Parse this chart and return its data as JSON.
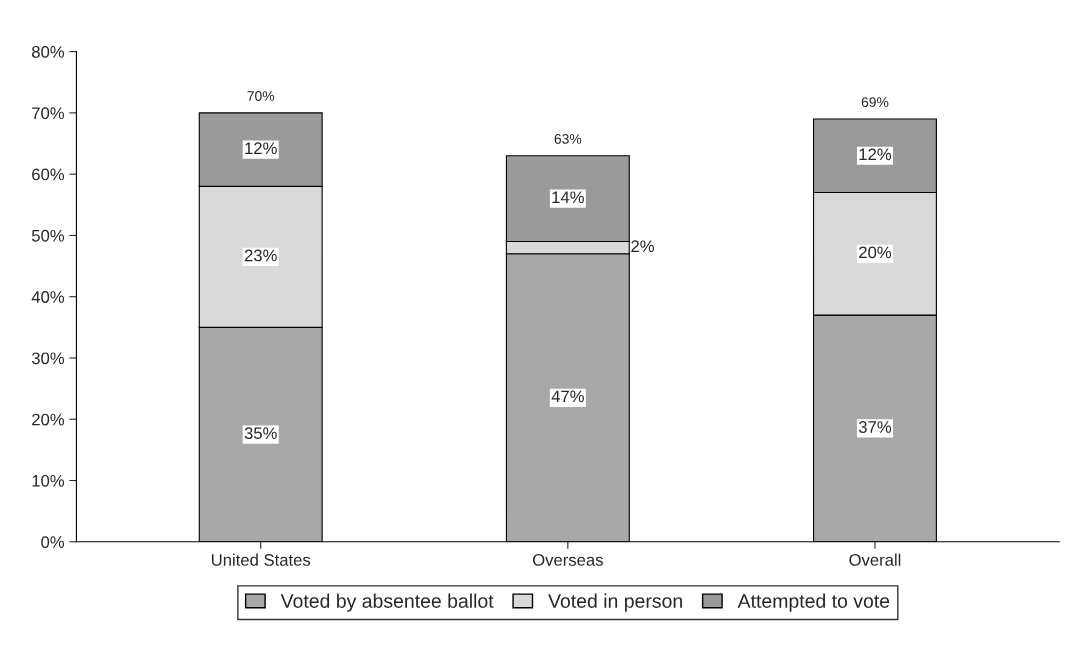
{
  "chart_data": {
    "type": "bar",
    "stacked": true,
    "categories": [
      "United States",
      "Overseas",
      "Overall"
    ],
    "series": [
      {
        "name": "Voted by absentee ballot",
        "color": "#a8a8a8",
        "values": [
          35,
          47,
          37
        ],
        "value_labels": [
          "35%",
          "47%",
          "37%"
        ]
      },
      {
        "name": "Voted in person",
        "color": "#d9d9d9",
        "values": [
          23,
          2,
          20
        ],
        "value_labels": [
          "23%",
          "2%",
          "20%"
        ]
      },
      {
        "name": "Attempted to vote",
        "color": "#9a9a9a",
        "values": [
          12,
          14,
          12
        ],
        "value_labels": [
          "12%",
          "14%",
          "12%"
        ]
      }
    ],
    "totals": [
      "70%",
      "63%",
      "69%"
    ],
    "ylim": [
      0,
      80
    ],
    "yticks": [
      {
        "value": 0,
        "label": "0%"
      },
      {
        "value": 10,
        "label": "10%"
      },
      {
        "value": 20,
        "label": "20%"
      },
      {
        "value": 30,
        "label": "30%"
      },
      {
        "value": 40,
        "label": "40%"
      },
      {
        "value": 50,
        "label": "50%"
      },
      {
        "value": 60,
        "label": "60%"
      },
      {
        "value": 70,
        "label": "70%"
      },
      {
        "value": 80,
        "label": "80%"
      }
    ],
    "legend": "bottom"
  }
}
